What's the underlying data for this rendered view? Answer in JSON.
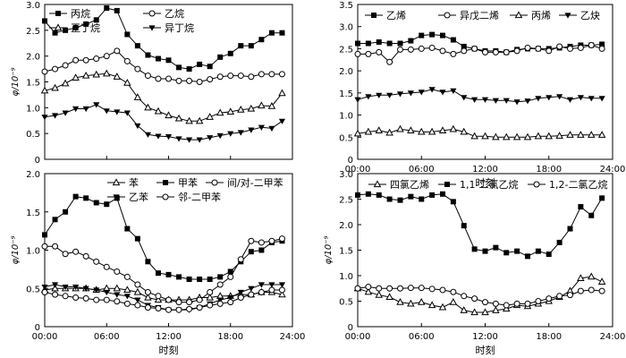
{
  "chart_data": [
    {
      "id": "alkanes",
      "type": "line",
      "xlabel": "",
      "ylabel": "φ/10⁻⁹",
      "ylim": [
        0,
        3.0
      ],
      "y_ticks": [
        "0",
        "0.5",
        "1.0",
        "1.5",
        "2.0",
        "2.5",
        "3.0"
      ],
      "x_ticks": [
        "",
        "",
        "",
        "",
        ""
      ],
      "legend_position": "top",
      "x": [
        0,
        1,
        2,
        3,
        4,
        5,
        6,
        7,
        8,
        9,
        10,
        11,
        12,
        13,
        14,
        15,
        16,
        17,
        18,
        19,
        20,
        21,
        22,
        23
      ],
      "series": [
        {
          "name": "丙烷",
          "marker": "square-filled",
          "values": [
            2.68,
            2.45,
            2.5,
            2.55,
            2.62,
            2.7,
            2.93,
            2.88,
            2.42,
            2.2,
            2.02,
            1.95,
            1.92,
            1.78,
            1.75,
            1.84,
            1.8,
            1.98,
            2.05,
            2.2,
            2.2,
            2.32,
            2.45,
            2.45
          ]
        },
        {
          "name": "乙烷",
          "marker": "circle-open",
          "values": [
            1.7,
            1.75,
            1.82,
            1.92,
            1.92,
            1.95,
            2.0,
            2.1,
            1.9,
            1.75,
            1.62,
            1.56,
            1.56,
            1.52,
            1.52,
            1.5,
            1.55,
            1.6,
            1.62,
            1.62,
            1.6,
            1.65,
            1.65,
            1.65
          ]
        },
        {
          "name": "正丁烷",
          "marker": "triangle-open",
          "values": [
            1.33,
            1.38,
            1.47,
            1.58,
            1.62,
            1.64,
            1.66,
            1.6,
            1.48,
            1.2,
            1.0,
            0.93,
            0.85,
            0.79,
            0.74,
            0.74,
            0.82,
            0.9,
            0.92,
            0.96,
            0.98,
            1.04,
            1.03,
            1.28
          ]
        },
        {
          "name": "异丁烷",
          "marker": "triangle-down-filled",
          "values": [
            0.82,
            0.85,
            0.9,
            0.98,
            0.98,
            1.06,
            0.94,
            0.92,
            0.9,
            0.65,
            0.48,
            0.45,
            0.44,
            0.4,
            0.38,
            0.38,
            0.42,
            0.46,
            0.5,
            0.52,
            0.57,
            0.62,
            0.6,
            0.74
          ]
        }
      ]
    },
    {
      "id": "alkenes",
      "type": "line",
      "xlabel": "时刻",
      "ylabel": "",
      "ylim": [
        0,
        3.5
      ],
      "y_ticks": [
        "0",
        "0.5",
        "1.0",
        "1.5",
        "2.0",
        "2.5",
        "3.0",
        "3.5"
      ],
      "x_ticks": [
        "00:00",
        "06:00",
        "12:00",
        "18:00",
        "24:00"
      ],
      "legend_position": "top",
      "x": [
        0,
        1,
        2,
        3,
        4,
        5,
        6,
        7,
        8,
        9,
        10,
        11,
        12,
        13,
        14,
        15,
        16,
        17,
        18,
        19,
        20,
        21,
        22,
        23
      ],
      "series": [
        {
          "name": "乙烯",
          "marker": "square-filled",
          "values": [
            2.62,
            2.62,
            2.65,
            2.62,
            2.62,
            2.68,
            2.8,
            2.82,
            2.8,
            2.7,
            2.55,
            2.5,
            2.45,
            2.45,
            2.42,
            2.48,
            2.5,
            2.5,
            2.5,
            2.52,
            2.55,
            2.58,
            2.58,
            2.6
          ]
        },
        {
          "name": "异戊二烯",
          "marker": "circle-open",
          "values": [
            2.38,
            2.38,
            2.42,
            2.2,
            2.48,
            2.48,
            2.5,
            2.52,
            2.45,
            2.38,
            2.45,
            2.5,
            2.42,
            2.42,
            2.42,
            2.45,
            2.52,
            2.5,
            2.45,
            2.55,
            2.5,
            2.52,
            2.58,
            2.5
          ]
        },
        {
          "name": "丙烯",
          "marker": "triangle-open",
          "values": [
            0.58,
            0.62,
            0.65,
            0.6,
            0.68,
            0.65,
            0.62,
            0.62,
            0.65,
            0.68,
            0.62,
            0.52,
            0.52,
            0.5,
            0.5,
            0.5,
            0.5,
            0.52,
            0.52,
            0.53,
            0.55,
            0.55,
            0.55,
            0.55
          ]
        },
        {
          "name": "乙炔",
          "marker": "triangle-down-filled",
          "values": [
            1.35,
            1.42,
            1.45,
            1.45,
            1.48,
            1.5,
            1.52,
            1.58,
            1.52,
            1.55,
            1.4,
            1.35,
            1.35,
            1.33,
            1.33,
            1.3,
            1.32,
            1.38,
            1.4,
            1.42,
            1.35,
            1.4,
            1.38,
            1.38
          ]
        }
      ]
    },
    {
      "id": "aromatics",
      "type": "line",
      "xlabel": "时刻",
      "ylabel": "φ/10⁻⁹",
      "ylim": [
        0,
        2.0
      ],
      "y_ticks": [
        "0",
        "0.5",
        "1.0",
        "1.5",
        "2.0"
      ],
      "x_ticks": [
        "00:00",
        "06:00",
        "12:00",
        "18:00",
        "24:00"
      ],
      "legend_position": "top",
      "x": [
        0,
        1,
        2,
        3,
        4,
        5,
        6,
        7,
        8,
        9,
        10,
        11,
        12,
        13,
        14,
        15,
        16,
        17,
        18,
        19,
        20,
        21,
        22,
        23
      ],
      "series": [
        {
          "name": "苯",
          "marker": "triangle-open",
          "values": [
            0.48,
            0.5,
            0.5,
            0.5,
            0.5,
            0.48,
            0.5,
            0.5,
            0.48,
            0.45,
            0.38,
            0.35,
            0.35,
            0.35,
            0.35,
            0.38,
            0.38,
            0.4,
            0.4,
            0.42,
            0.42,
            0.45,
            0.45,
            0.42
          ]
        },
        {
          "name": "甲苯",
          "marker": "square-filled",
          "values": [
            1.2,
            1.4,
            1.5,
            1.7,
            1.68,
            1.62,
            1.6,
            1.68,
            1.28,
            1.15,
            0.85,
            0.7,
            0.68,
            0.65,
            0.62,
            0.62,
            0.62,
            0.65,
            0.72,
            0.85,
            0.98,
            1.0,
            1.1,
            1.12
          ]
        },
        {
          "name": "间/对-二甲苯",
          "marker": "circle-open",
          "values": [
            1.05,
            1.05,
            0.95,
            0.98,
            0.92,
            0.85,
            0.78,
            0.72,
            0.65,
            0.55,
            0.45,
            0.4,
            0.35,
            0.32,
            0.32,
            0.35,
            0.45,
            0.55,
            0.65,
            0.88,
            1.12,
            1.1,
            1.12,
            1.15
          ]
        },
        {
          "name": "乙苯",
          "marker": "triangle-down-filled",
          "values": [
            0.52,
            0.55,
            0.52,
            0.52,
            0.5,
            0.48,
            0.45,
            0.42,
            0.4,
            0.35,
            0.28,
            0.25,
            0.22,
            0.22,
            0.22,
            0.25,
            0.3,
            0.35,
            0.38,
            0.45,
            0.5,
            0.55,
            0.55,
            0.55
          ]
        },
        {
          "name": "邻-二甲苯",
          "marker": "circle-open",
          "values": [
            0.45,
            0.42,
            0.4,
            0.38,
            0.37,
            0.35,
            0.35,
            0.33,
            0.3,
            0.28,
            0.25,
            0.24,
            0.22,
            0.22,
            0.23,
            0.25,
            0.28,
            0.3,
            0.32,
            0.38,
            0.42,
            0.45,
            0.48,
            0.48
          ]
        }
      ]
    },
    {
      "id": "halocarbons",
      "type": "line",
      "xlabel": "时刻",
      "ylabel": "φ/10⁻⁹",
      "ylim": [
        0,
        3.0
      ],
      "y_ticks": [
        "0",
        "0.5",
        "1.0",
        "1.5",
        "2.0",
        "2.5",
        "3.0"
      ],
      "x_ticks": [
        "00:00",
        "06:00",
        "12:00",
        "18:00",
        "24:00"
      ],
      "legend_position": "top",
      "x": [
        0,
        1,
        2,
        3,
        4,
        5,
        6,
        7,
        8,
        9,
        10,
        11,
        12,
        13,
        14,
        15,
        16,
        17,
        18,
        19,
        20,
        21,
        22,
        23
      ],
      "series": [
        {
          "name": "四氯乙烯",
          "marker": "triangle-open",
          "values": [
            0.75,
            0.68,
            0.62,
            0.58,
            0.48,
            0.45,
            0.48,
            0.42,
            0.38,
            0.48,
            0.32,
            0.28,
            0.28,
            0.32,
            0.35,
            0.42,
            0.4,
            0.45,
            0.5,
            0.58,
            0.7,
            0.95,
            0.98,
            0.88
          ]
        },
        {
          "name": "1,1-二氯乙烷",
          "marker": "square-filled",
          "values": [
            2.58,
            2.6,
            2.58,
            2.5,
            2.48,
            2.55,
            2.5,
            2.58,
            2.6,
            2.45,
            1.98,
            1.52,
            1.48,
            1.55,
            1.45,
            1.48,
            1.38,
            1.48,
            1.42,
            1.65,
            1.92,
            2.35,
            2.18,
            2.52
          ]
        },
        {
          "name": "1,2-二氯乙烷",
          "marker": "circle-open",
          "values": [
            0.75,
            0.78,
            0.75,
            0.75,
            0.75,
            0.76,
            0.76,
            0.74,
            0.72,
            0.68,
            0.6,
            0.55,
            0.48,
            0.45,
            0.42,
            0.45,
            0.45,
            0.5,
            0.55,
            0.6,
            0.62,
            0.7,
            0.72,
            0.7
          ]
        }
      ]
    }
  ]
}
